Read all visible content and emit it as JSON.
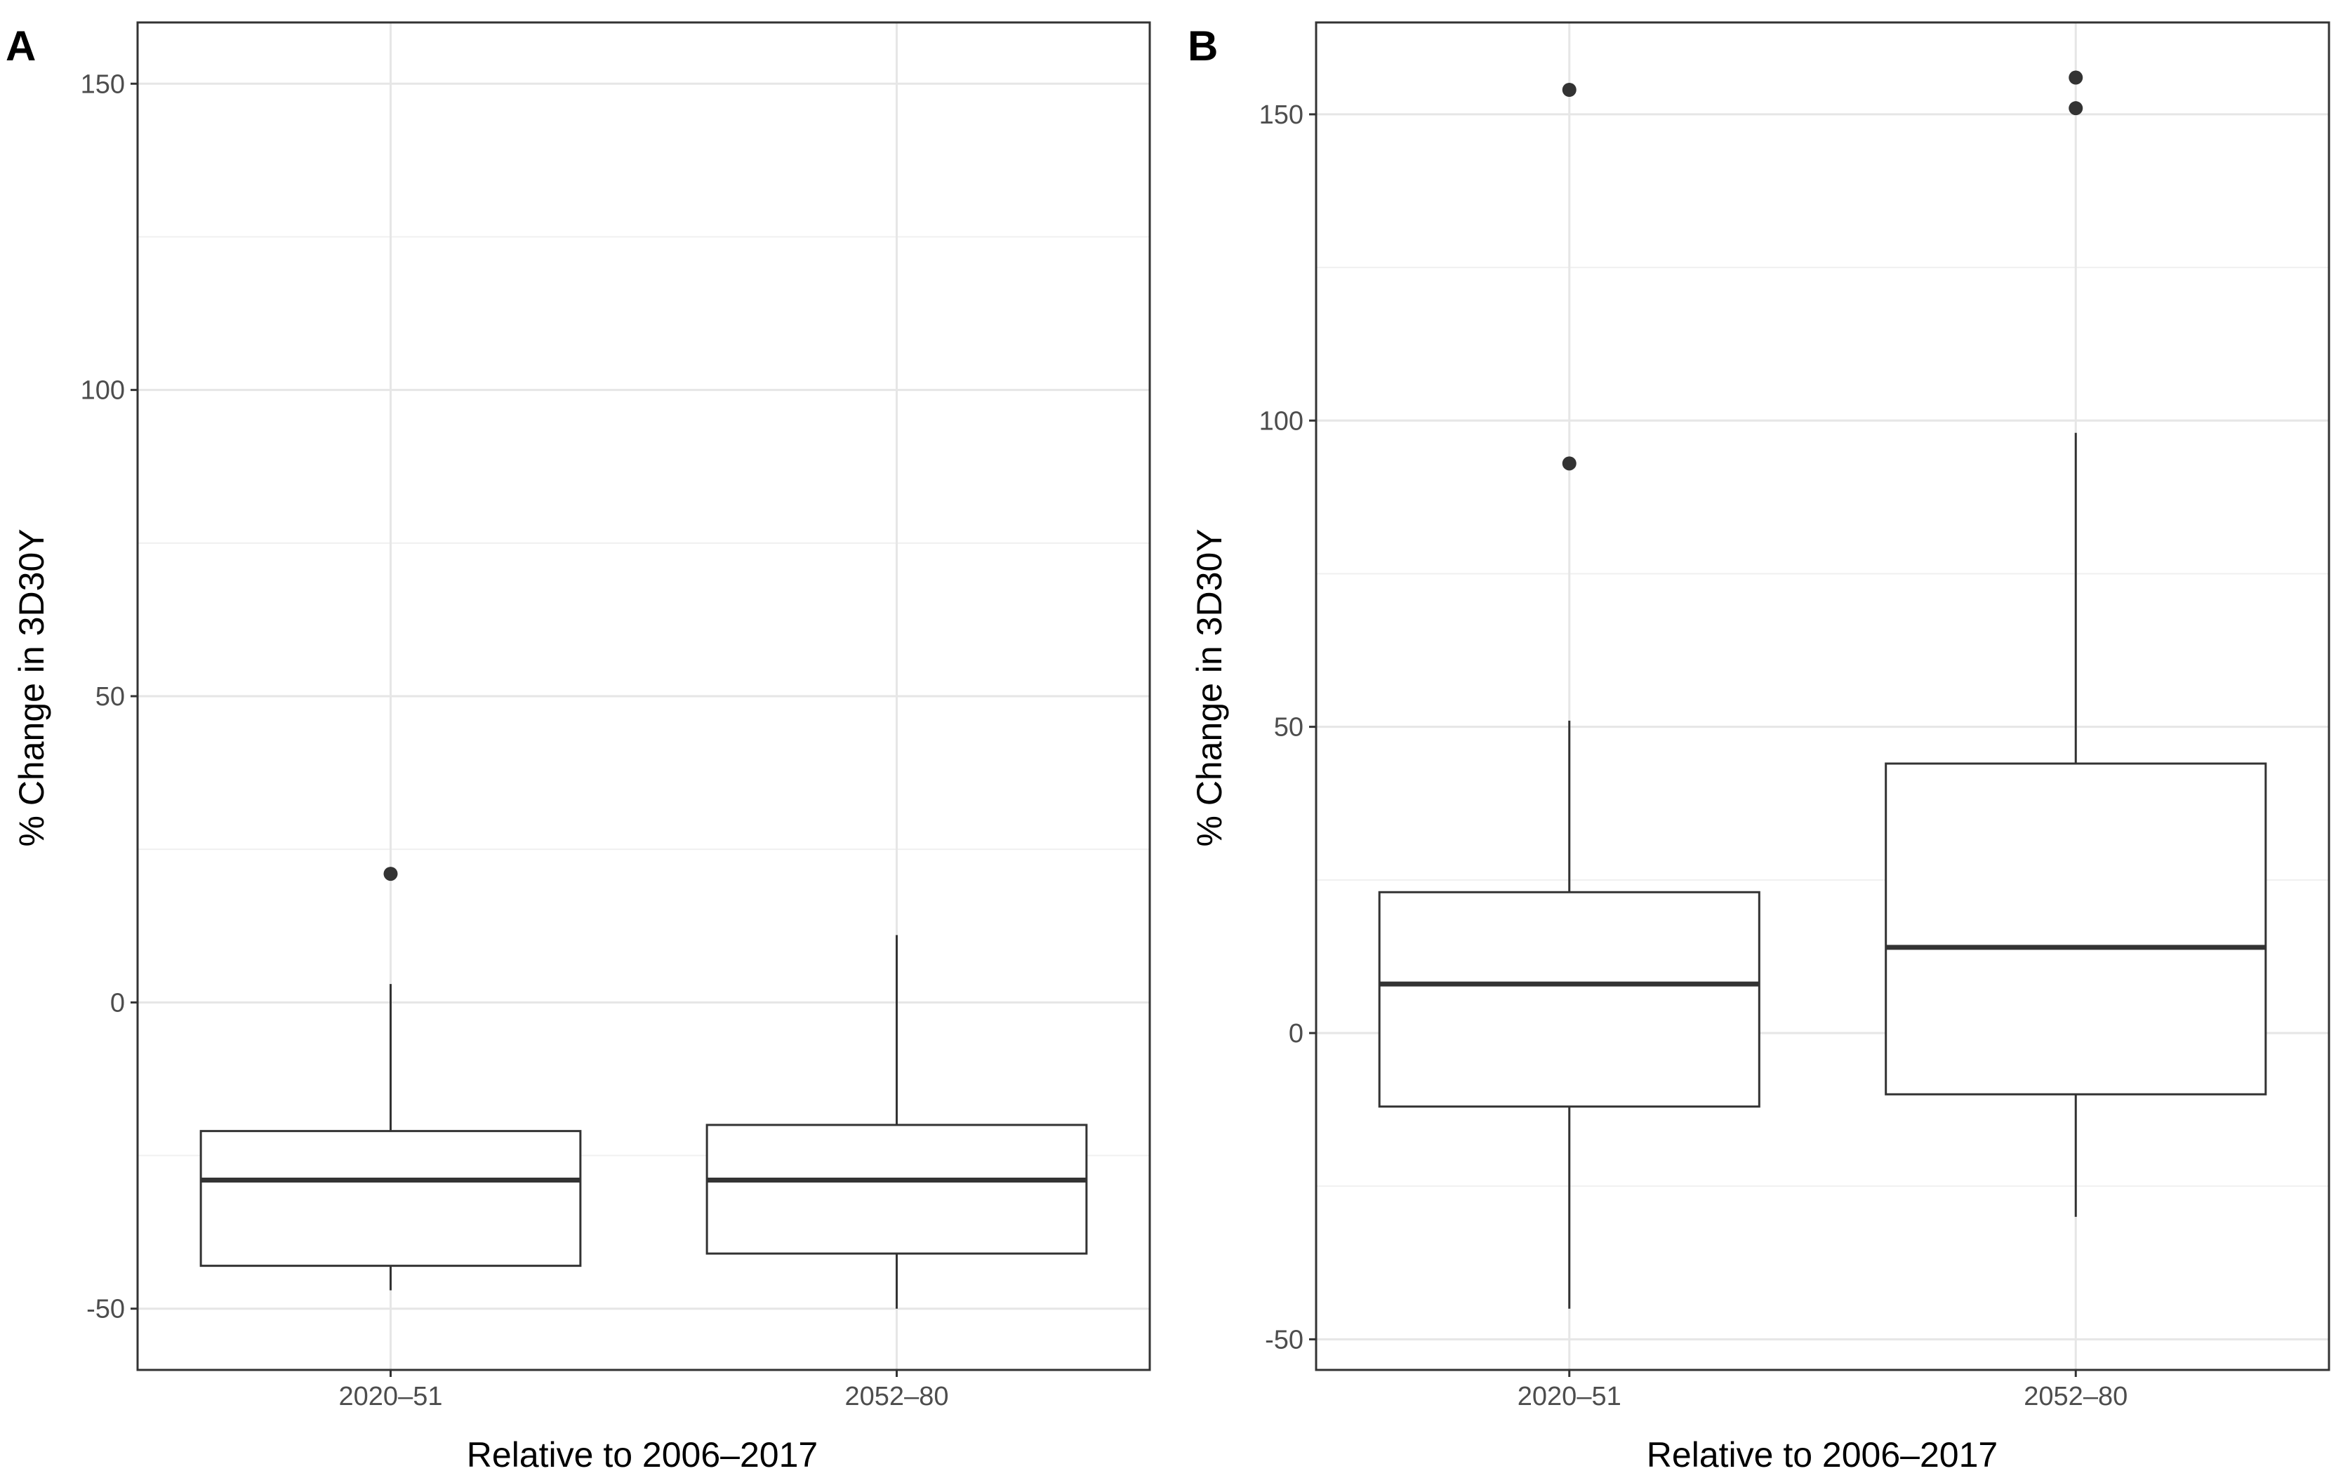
{
  "chart_data": [
    {
      "type": "box",
      "panel_label": "A",
      "xlabel": "Relative to 2006–2017",
      "ylabel": "% Change in 3D30Y",
      "ylim": [
        -60,
        160
      ],
      "yticks": [
        -50,
        0,
        50,
        100,
        150
      ],
      "ytick_labels": [
        "-50",
        "0",
        "50",
        "100",
        "150"
      ],
      "grid": true,
      "categories": [
        "2020–51",
        "2052–80"
      ],
      "boxes": [
        {
          "category": "2020–51",
          "whisker_low": -47,
          "q1": -43,
          "median": -29,
          "q3": -21,
          "whisker_high": 3,
          "outliers": [
            21
          ]
        },
        {
          "category": "2052–80",
          "whisker_low": -50,
          "q1": -41,
          "median": -29,
          "q3": -20,
          "whisker_high": 11,
          "outliers": []
        }
      ]
    },
    {
      "type": "box",
      "panel_label": "B",
      "xlabel": "Relative to 2006–2017",
      "ylabel": "% Change in 3D30Y",
      "ylim": [
        -55,
        165
      ],
      "yticks": [
        -50,
        0,
        50,
        100,
        150
      ],
      "ytick_labels": [
        "-50",
        "0",
        "50",
        "100",
        "150"
      ],
      "grid": true,
      "categories": [
        "2020–51",
        "2052–80"
      ],
      "boxes": [
        {
          "category": "2020–51",
          "whisker_low": -45,
          "q1": -12,
          "median": 8,
          "q3": 23,
          "whisker_high": 51,
          "outliers": [
            93,
            154
          ]
        },
        {
          "category": "2052–80",
          "whisker_low": -30,
          "q1": -10,
          "median": 14,
          "q3": 44,
          "whisker_high": 98,
          "outliers": [
            151,
            156
          ]
        }
      ]
    }
  ]
}
